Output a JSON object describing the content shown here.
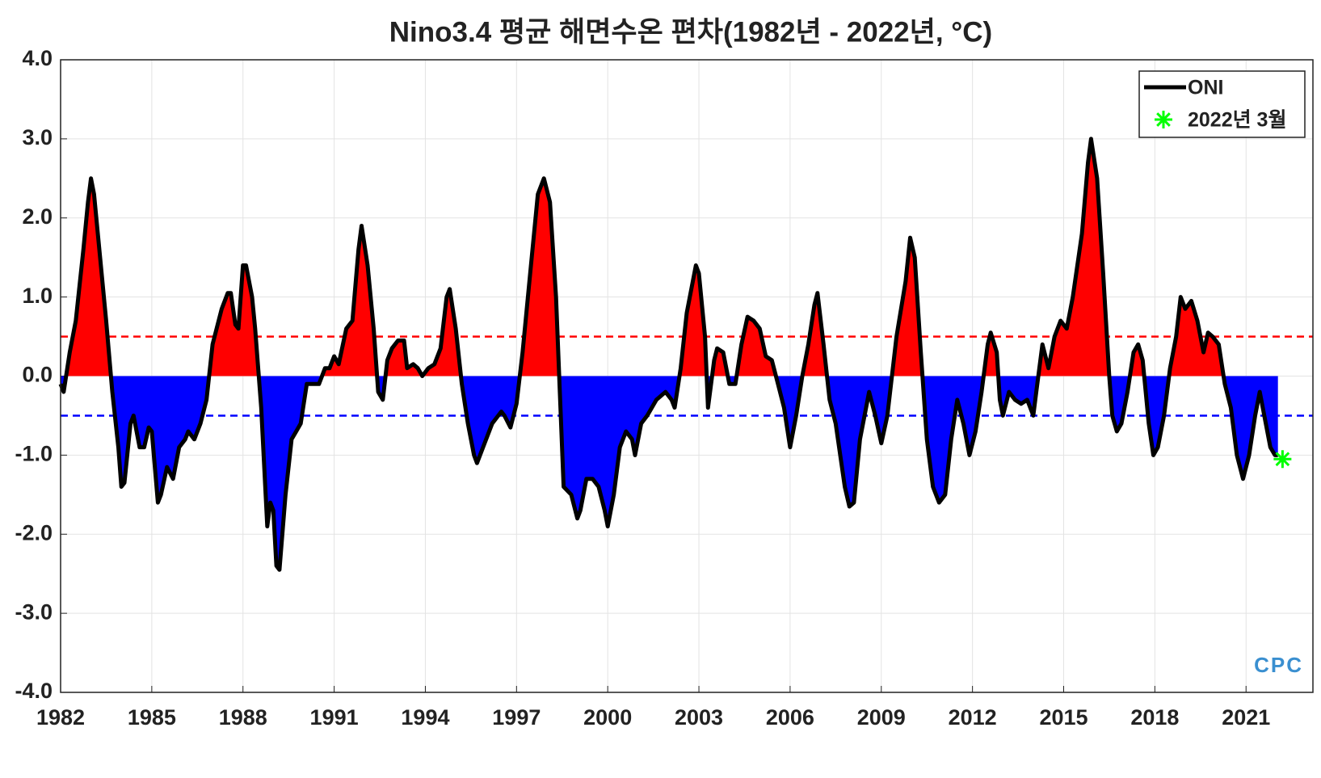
{
  "chart_data": {
    "type": "area",
    "title": "Nino3.4 평균 해면수온 편차(1982년 - 2022년, °C)",
    "x": [
      1982.0,
      1982.1,
      1982.3,
      1982.5,
      1982.75,
      1982.9,
      1983.0,
      1983.1,
      1983.3,
      1983.5,
      1983.7,
      1983.9,
      1984.0,
      1984.1,
      1984.3,
      1984.4,
      1984.6,
      1984.75,
      1984.9,
      1985.0,
      1985.2,
      1985.3,
      1985.5,
      1985.7,
      1985.9,
      1986.1,
      1986.2,
      1986.4,
      1986.6,
      1986.8,
      1987.0,
      1987.3,
      1987.5,
      1987.6,
      1987.75,
      1987.85,
      1988.0,
      1988.1,
      1988.3,
      1988.4,
      1988.6,
      1988.8,
      1988.9,
      1989.0,
      1989.1,
      1989.2,
      1989.4,
      1989.6,
      1989.75,
      1989.9,
      1990.1,
      1990.3,
      1990.5,
      1990.7,
      1990.85,
      1991.0,
      1991.15,
      1991.4,
      1991.6,
      1991.8,
      1991.9,
      1992.1,
      1992.3,
      1992.45,
      1992.6,
      1992.75,
      1992.9,
      1993.1,
      1993.3,
      1993.4,
      1993.6,
      1993.75,
      1993.9,
      1994.1,
      1994.3,
      1994.5,
      1994.7,
      1994.8,
      1995.0,
      1995.2,
      1995.4,
      1995.6,
      1995.7,
      1995.9,
      1996.2,
      1996.5,
      1996.6,
      1996.8,
      1997.0,
      1997.2,
      1997.5,
      1997.7,
      1997.9,
      1998.1,
      1998.3,
      1998.55,
      1998.8,
      1999.0,
      1999.1,
      1999.3,
      1999.5,
      1999.7,
      1999.9,
      2000.0,
      2000.2,
      2000.4,
      2000.6,
      2000.8,
      2000.9,
      2001.1,
      2001.3,
      2001.6,
      2001.9,
      2002.1,
      2002.2,
      2002.4,
      2002.6,
      2002.9,
      2003.0,
      2003.2,
      2003.3,
      2003.5,
      2003.6,
      2003.8,
      2004.0,
      2004.2,
      2004.4,
      2004.6,
      2004.8,
      2005.0,
      2005.2,
      2005.4,
      2005.6,
      2005.8,
      2006.0,
      2006.2,
      2006.4,
      2006.6,
      2006.8,
      2006.9,
      2007.1,
      2007.3,
      2007.5,
      2007.8,
      2007.95,
      2008.1,
      2008.3,
      2008.6,
      2008.8,
      2009.0,
      2009.2,
      2009.5,
      2009.8,
      2009.95,
      2010.1,
      2010.3,
      2010.5,
      2010.7,
      2010.9,
      2011.1,
      2011.3,
      2011.5,
      2011.7,
      2011.9,
      2012.1,
      2012.3,
      2012.5,
      2012.6,
      2012.8,
      2012.9,
      2013.0,
      2013.2,
      2013.4,
      2013.6,
      2013.8,
      2014.0,
      2014.1,
      2014.3,
      2014.5,
      2014.7,
      2014.9,
      2015.1,
      2015.3,
      2015.6,
      2015.8,
      2015.9,
      2016.1,
      2016.3,
      2016.5,
      2016.6,
      2016.75,
      2016.9,
      2017.1,
      2017.3,
      2017.45,
      2017.6,
      2017.8,
      2017.95,
      2018.1,
      2018.3,
      2018.5,
      2018.7,
      2018.85,
      2019.0,
      2019.2,
      2019.4,
      2019.6,
      2019.75,
      2019.9,
      2020.1,
      2020.3,
      2020.5,
      2020.7,
      2020.9,
      2021.1,
      2021.3,
      2021.45,
      2021.6,
      2021.8,
      2021.95,
      2022.05
    ],
    "series": [
      {
        "name": "ONI",
        "color": "#000000",
        "positive_color": "#ff0000",
        "negative_color": "#0000ff",
        "values": [
          -0.1,
          -0.2,
          0.3,
          0.7,
          1.6,
          2.2,
          2.5,
          2.3,
          1.5,
          0.7,
          -0.2,
          -0.9,
          -1.4,
          -1.35,
          -0.6,
          -0.5,
          -0.9,
          -0.9,
          -0.65,
          -0.7,
          -1.6,
          -1.5,
          -1.15,
          -1.3,
          -0.9,
          -0.8,
          -0.7,
          -0.8,
          -0.6,
          -0.3,
          0.4,
          0.85,
          1.05,
          1.05,
          0.65,
          0.6,
          1.4,
          1.4,
          1.0,
          0.6,
          -0.4,
          -1.9,
          -1.6,
          -1.7,
          -2.4,
          -2.45,
          -1.5,
          -0.8,
          -0.7,
          -0.6,
          -0.1,
          -0.1,
          -0.1,
          0.1,
          0.1,
          0.25,
          0.15,
          0.6,
          0.7,
          1.6,
          1.9,
          1.4,
          0.6,
          -0.2,
          -0.3,
          0.2,
          0.35,
          0.45,
          0.45,
          0.1,
          0.15,
          0.1,
          0.0,
          0.1,
          0.15,
          0.35,
          1.0,
          1.1,
          0.6,
          -0.1,
          -0.6,
          -1.0,
          -1.1,
          -0.9,
          -0.6,
          -0.45,
          -0.5,
          -0.65,
          -0.35,
          0.3,
          1.5,
          2.3,
          2.5,
          2.2,
          1.0,
          -1.4,
          -1.5,
          -1.8,
          -1.7,
          -1.3,
          -1.3,
          -1.4,
          -1.7,
          -1.9,
          -1.5,
          -0.9,
          -0.7,
          -0.8,
          -1.0,
          -0.6,
          -0.5,
          -0.3,
          -0.2,
          -0.3,
          -0.4,
          0.1,
          0.8,
          1.4,
          1.3,
          0.5,
          -0.4,
          0.2,
          0.35,
          0.3,
          -0.1,
          -0.1,
          0.4,
          0.75,
          0.7,
          0.6,
          0.25,
          0.2,
          -0.1,
          -0.4,
          -0.9,
          -0.5,
          0.0,
          0.4,
          0.9,
          1.05,
          0.4,
          -0.3,
          -0.6,
          -1.4,
          -1.65,
          -1.6,
          -0.8,
          -0.2,
          -0.5,
          -0.85,
          -0.5,
          0.5,
          1.2,
          1.75,
          1.5,
          0.3,
          -0.8,
          -1.4,
          -1.6,
          -1.5,
          -0.8,
          -0.3,
          -0.6,
          -1.0,
          -0.7,
          -0.2,
          0.4,
          0.55,
          0.3,
          -0.3,
          -0.5,
          -0.2,
          -0.3,
          -0.35,
          -0.3,
          -0.5,
          -0.2,
          0.4,
          0.1,
          0.5,
          0.7,
          0.6,
          1.0,
          1.8,
          2.7,
          3.0,
          2.5,
          1.3,
          0.0,
          -0.5,
          -0.7,
          -0.6,
          -0.2,
          0.3,
          0.4,
          0.2,
          -0.6,
          -1.0,
          -0.9,
          -0.5,
          0.1,
          0.5,
          1.0,
          0.85,
          0.95,
          0.7,
          0.3,
          0.55,
          0.5,
          0.4,
          -0.1,
          -0.4,
          -1.0,
          -1.3,
          -1.0,
          -0.5,
          -0.2,
          -0.5,
          -0.9,
          -1.0,
          -1.0
        ]
      }
    ],
    "highlight": {
      "name": "2022년 3월",
      "color": "#00ff00",
      "x": 2022.2,
      "value": -1.05
    },
    "reference_lines": [
      {
        "value": 0.5,
        "color": "#ff0000"
      },
      {
        "value": -0.5,
        "color": "#0000ff"
      }
    ],
    "xlim": [
      1982,
      2023.2
    ],
    "ylim": [
      -4,
      4
    ],
    "xticks": [
      1982,
      1985,
      1988,
      1991,
      1994,
      1997,
      2000,
      2003,
      2006,
      2009,
      2012,
      2015,
      2018,
      2021
    ],
    "yticks": [
      {
        "value": 4,
        "label": "4.0"
      },
      {
        "value": 3,
        "label": "3.0"
      },
      {
        "value": 2,
        "label": "2.0"
      },
      {
        "value": 1,
        "label": "1.0"
      },
      {
        "value": 0,
        "label": "0.0"
      },
      {
        "value": -1,
        "label": "-1.0"
      },
      {
        "value": -2,
        "label": "-2.0"
      },
      {
        "value": -3,
        "label": "-3.0"
      },
      {
        "value": -4,
        "label": "-4.0"
      }
    ],
    "grid": true,
    "legend": "upper right",
    "logo": "CPC"
  }
}
